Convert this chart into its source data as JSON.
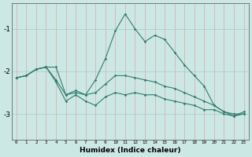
{
  "xlabel": "Humidex (Indice chaleur)",
  "background_color": "#cce8e4",
  "line_color": "#2e7d6e",
  "grid_color_v": "#ddb0b0",
  "grid_color_h": "#aacfcc",
  "xlim": [
    -0.5,
    23.5
  ],
  "ylim": [
    -3.6,
    -0.4
  ],
  "yticks": [
    -3,
    -2,
    -1
  ],
  "x": [
    0,
    1,
    2,
    3,
    4,
    5,
    6,
    7,
    8,
    9,
    10,
    11,
    12,
    13,
    14,
    15,
    16,
    17,
    18,
    19,
    20,
    21,
    22,
    23
  ],
  "line1": [
    -2.15,
    -2.1,
    -1.95,
    -1.9,
    -1.9,
    -2.55,
    -2.45,
    -2.55,
    -2.2,
    -1.7,
    -1.05,
    -0.65,
    -1.0,
    -1.3,
    -1.15,
    -1.25,
    -1.55,
    -1.85,
    -2.1,
    -2.35,
    -2.8,
    -2.95,
    -3.05,
    -2.95
  ],
  "line2": [
    -2.15,
    -2.1,
    -1.95,
    -1.9,
    -2.25,
    -2.7,
    -2.55,
    -2.7,
    -2.8,
    -2.6,
    -2.5,
    -2.55,
    -2.5,
    -2.55,
    -2.55,
    -2.65,
    -2.7,
    -2.75,
    -2.8,
    -2.9,
    -2.9,
    -3.0,
    -3.05,
    -3.0
  ],
  "line3": [
    -2.15,
    -2.1,
    -1.95,
    -1.9,
    -2.2,
    -2.55,
    -2.5,
    -2.55,
    -2.5,
    -2.3,
    -2.1,
    -2.1,
    -2.15,
    -2.2,
    -2.25,
    -2.35,
    -2.4,
    -2.5,
    -2.6,
    -2.7,
    -2.8,
    -2.95,
    -3.0,
    -3.0
  ]
}
